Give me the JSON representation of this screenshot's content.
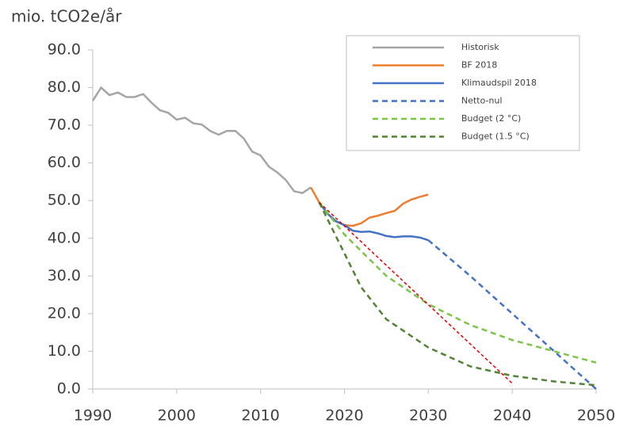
{
  "chart_data": {
    "type": "line",
    "title": "mio. tCO2e/år",
    "xlim": [
      1990,
      2050
    ],
    "xticks": [
      1990,
      2000,
      2010,
      2020,
      2030,
      2040,
      2050
    ],
    "ylim": [
      0,
      90
    ],
    "yticks": [
      {
        "value": 0,
        "label": "0.0"
      },
      {
        "value": 10,
        "label": "10.0"
      },
      {
        "value": 20,
        "label": "20.0"
      },
      {
        "value": 30,
        "label": "30.0"
      },
      {
        "value": 40,
        "label": "40.0"
      },
      {
        "value": 50,
        "label": "50.0"
      },
      {
        "value": 60,
        "label": "60.0"
      },
      {
        "value": 70,
        "label": "70.0"
      },
      {
        "value": 80,
        "label": "80.0"
      },
      {
        "value": 90,
        "label": "90.0"
      }
    ],
    "legend": "upper right",
    "series": [
      {
        "name": "Historisk",
        "color": "#a5a5a5",
        "dash": false,
        "x": [
          1990,
          1991,
          1992,
          1993,
          1994,
          1995,
          1996,
          1997,
          1998,
          1999,
          2000,
          2001,
          2002,
          2003,
          2004,
          2005,
          2006,
          2007,
          2008,
          2009,
          2010,
          2011,
          2012,
          2013,
          2014,
          2015,
          2016
        ],
        "values": [
          76.5,
          80,
          78,
          78.7,
          77.5,
          77.5,
          78.3,
          76,
          74,
          73.3,
          71.5,
          72,
          70.5,
          70.2,
          68.5,
          67.5,
          68.5,
          68.5,
          66.5,
          63,
          62,
          59,
          57.5,
          55.5,
          52.5,
          52,
          53.5
        ]
      },
      {
        "name": "BF 2018",
        "color": "#ed7d31",
        "dash": false,
        "x": [
          2016,
          2017,
          2018,
          2019,
          2020,
          2021,
          2022,
          2023,
          2024,
          2025,
          2026,
          2027,
          2028,
          2029,
          2030
        ],
        "values": [
          53.5,
          49.5,
          46.5,
          44.5,
          43.5,
          43.3,
          44,
          45.5,
          46,
          46.7,
          47.3,
          49.2,
          50.3,
          51,
          51.6
        ]
      },
      {
        "name": "Klimaudspil 2018",
        "color": "#4472c4",
        "dash": false,
        "x": [
          2017,
          2018,
          2019,
          2020,
          2021,
          2022,
          2023,
          2024,
          2025,
          2026,
          2027,
          2028,
          2029,
          2030
        ],
        "values": [
          49.5,
          46.5,
          44.5,
          43.5,
          42,
          41.7,
          41.8,
          41.3,
          40.6,
          40.3,
          40.5,
          40.5,
          40.2,
          39.5
        ]
      },
      {
        "name": "Netto-nul",
        "color": "#4472c4",
        "dash": true,
        "x": [
          2030,
          2035,
          2040,
          2045,
          2050
        ],
        "values": [
          39.5,
          30,
          20,
          10,
          0
        ]
      },
      {
        "name": "Budget (2 °C)",
        "color": "#7cc34a",
        "dash": true,
        "x": [
          2017,
          2020,
          2025,
          2030,
          2035,
          2040,
          2045,
          2050
        ],
        "values": [
          49.5,
          41,
          30,
          22.5,
          17,
          13,
          10,
          7
        ]
      },
      {
        "name": "Budget (1.5 °C)",
        "color": "#548235",
        "dash": true,
        "x": [
          2017,
          2020,
          2022,
          2025,
          2030,
          2035,
          2040,
          2045,
          2050
        ],
        "values": [
          49.5,
          36,
          27,
          18.5,
          11,
          6,
          3.5,
          2,
          1
        ]
      },
      {
        "color": "#e00000",
        "dash": true,
        "x": [
          2017,
          2040
        ],
        "values": [
          49.5,
          1.5
        ]
      }
    ]
  }
}
